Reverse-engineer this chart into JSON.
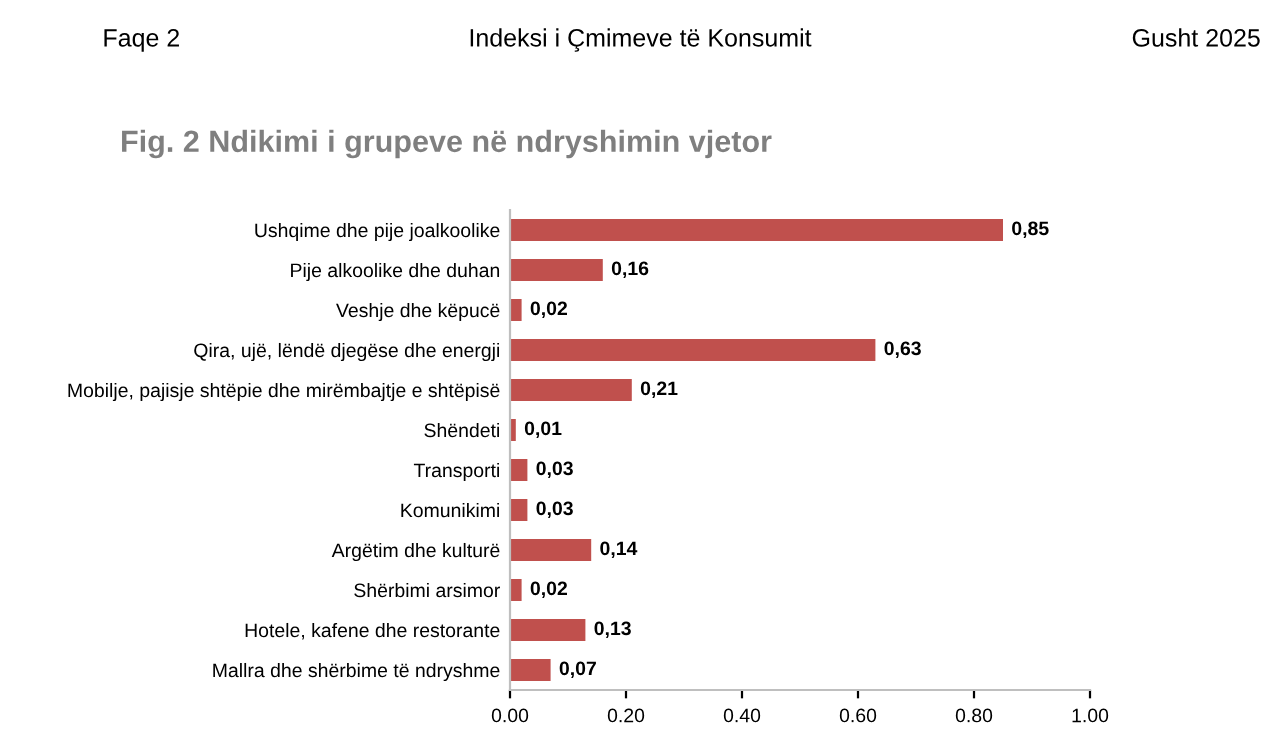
{
  "chart_data": {
    "type": "bar",
    "orientation": "horizontal",
    "title": "Fig. 2 Ndikimi i grupeve në ndryshimin vjetor",
    "annotations": [
      "Faqe 2",
      "Indeksi i Çmimeve të Konsumit",
      "Gusht 2025"
    ],
    "categories": [
      "Ushqime dhe pije joalkoolike",
      "Pije alkoolike dhe duhan",
      "Veshje dhe këpucë",
      "Qira, ujë, lëndë djegëse dhe energji",
      "Mobilje, pajisje shtëpie dhe mirëmbajtje e shtëpisë",
      "Shëndeti",
      "Transporti",
      "Komunikimi",
      "Argëtim dhe kulturë",
      "Shërbimi arsimor",
      "Hotele, kafene dhe restorante",
      "Mallra dhe shërbime të ndryshme"
    ],
    "values": [
      0.85,
      0.16,
      0.02,
      0.63,
      0.21,
      0.01,
      0.03,
      0.03,
      0.14,
      0.02,
      0.13,
      0.07
    ],
    "value_labels": [
      "0,85",
      "0,16",
      "0,02",
      "0,63",
      "0,21",
      "0,01",
      "0,03",
      "0,03",
      "0,14",
      "0,02",
      "0,13",
      "0,07"
    ],
    "color": "#c0504d",
    "xlim": [
      0,
      1
    ],
    "xticks": [
      {
        "value": 0,
        "label": "0.00"
      },
      {
        "value": 0.2,
        "label": "0.20"
      },
      {
        "value": 0.4,
        "label": "0.40"
      },
      {
        "value": 0.6,
        "label": "0.60"
      },
      {
        "value": 0.8,
        "label": "0.80"
      },
      {
        "value": 1,
        "label": "1.00"
      }
    ],
    "grid": false,
    "legend": false
  }
}
